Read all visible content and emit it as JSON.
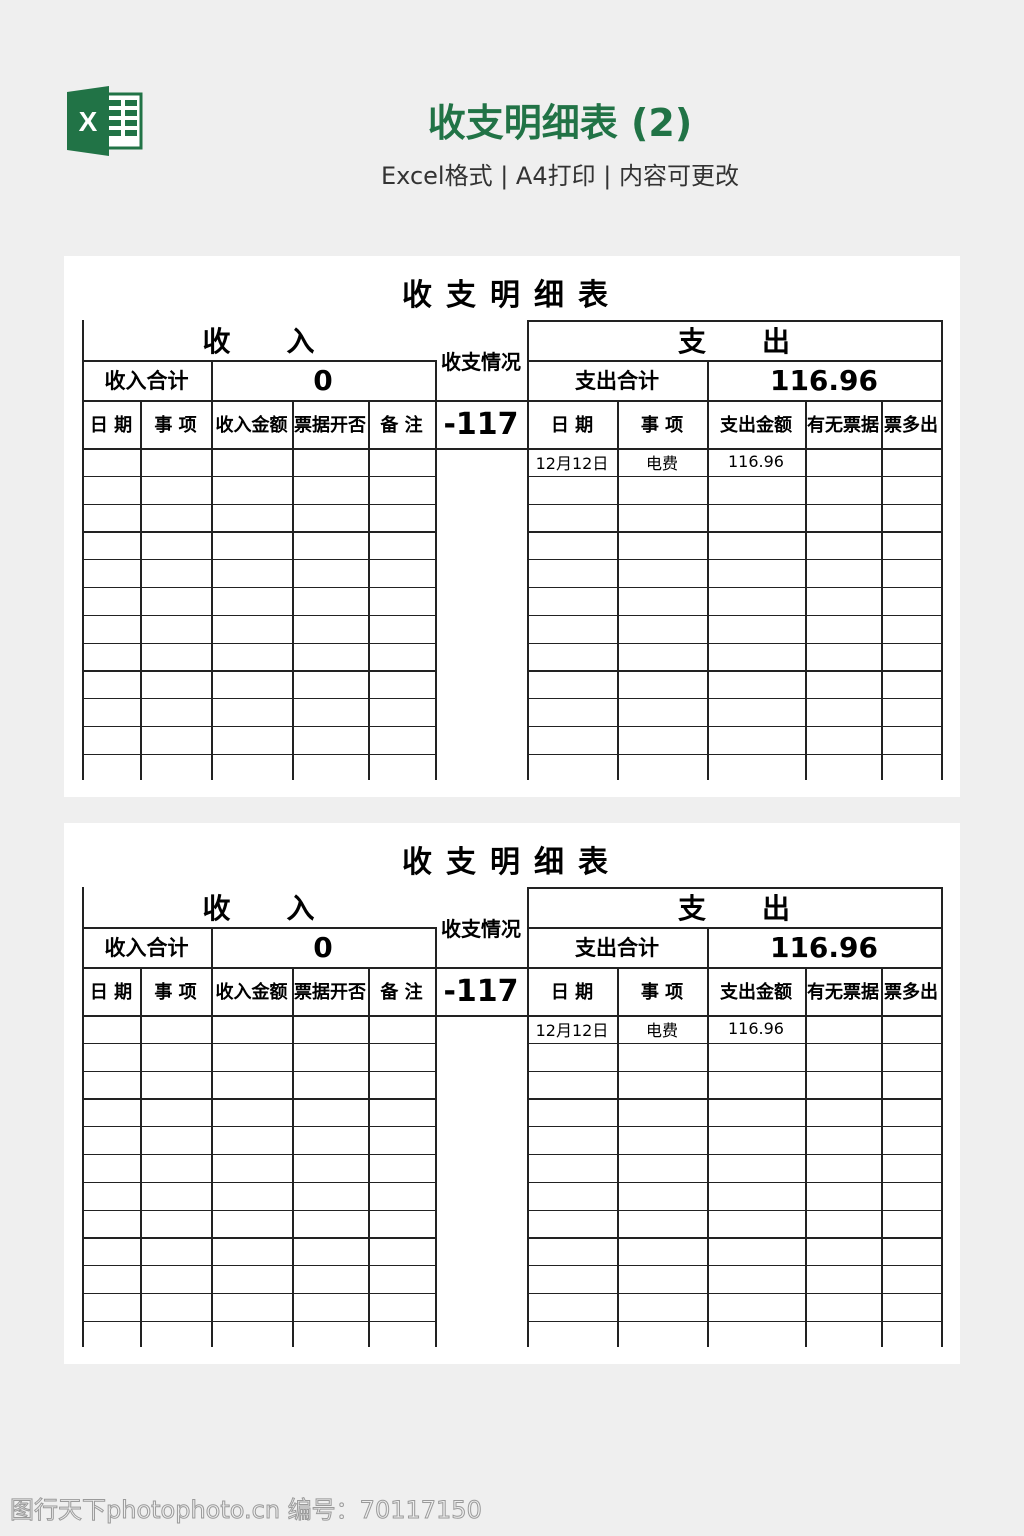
{
  "header": {
    "logo_icon": "excel-icon",
    "logo_letter": "X",
    "brand_color": "#217346",
    "title": "收支明细表 (2)",
    "subtitle": "Excel格式 | A4打印 | 内容可更改"
  },
  "sheets": [
    {
      "title": "收支明细表",
      "income_header": "收　　入",
      "balance_label": "收支情况",
      "expense_header": "支　　出",
      "income_total_label": "收入合计",
      "income_total_value": "0",
      "expense_total_label": "支出合计",
      "expense_total_value": "116.96",
      "balance_value": "-117",
      "income_columns": [
        "日 期",
        "事 项",
        "收入金额",
        "票据开否",
        "备 注"
      ],
      "expense_columns": [
        "日 期",
        "事 项",
        "支出金额",
        "有无票据",
        "票多出"
      ],
      "expense_rows": [
        [
          "12月12日",
          "电费",
          "116.96",
          "",
          ""
        ]
      ]
    },
    {
      "title": "收支明细表",
      "income_header": "收　　入",
      "balance_label": "收支情况",
      "expense_header": "支　　出",
      "income_total_label": "收入合计",
      "income_total_value": "0",
      "expense_total_label": "支出合计",
      "expense_total_value": "116.96",
      "balance_value": "-117",
      "income_columns": [
        "日 期",
        "事 项",
        "收入金额",
        "票据开否",
        "备 注"
      ],
      "expense_columns": [
        "日 期",
        "事 项",
        "支出金额",
        "有无票据",
        "票多出"
      ],
      "expense_rows": [
        [
          "12月12日",
          "电费",
          "116.96",
          "",
          ""
        ]
      ]
    }
  ],
  "watermark": "图行天下photophoto.cn 编号：70117150"
}
